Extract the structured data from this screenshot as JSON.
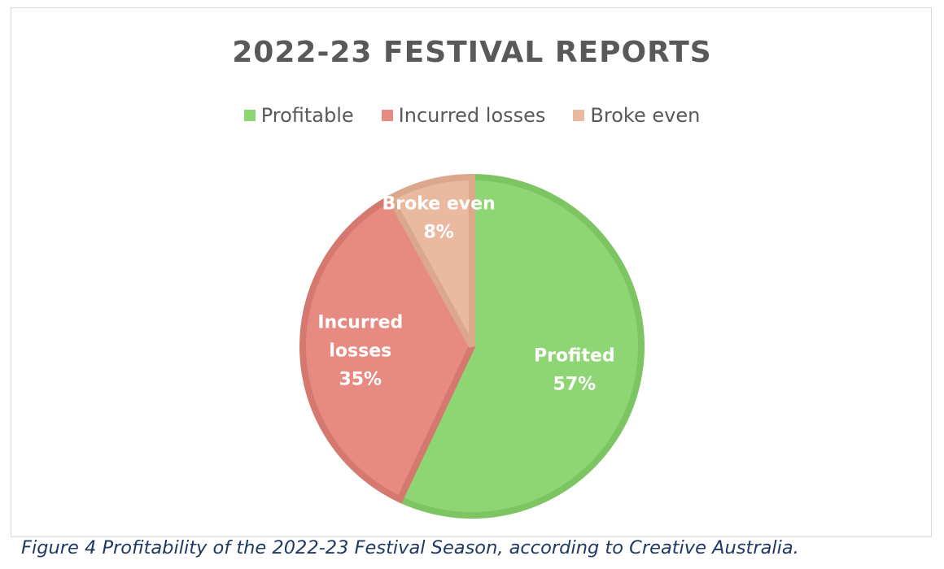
{
  "chart_data": {
    "type": "pie",
    "title": "2022-23 FESTIVAL REPORTS",
    "legend": {
      "position": "top",
      "entries": [
        "Profitable",
        "Incurred losses",
        "Broke even"
      ]
    },
    "slices": [
      {
        "legend": "Profitable",
        "label_lines": [
          "Profited"
        ],
        "pct_label": "57%",
        "value": 57,
        "color": "#8ed673",
        "stroke": "#7dc462"
      },
      {
        "legend": "Incurred losses",
        "label_lines": [
          "Incurred",
          "losses"
        ],
        "pct_label": "35%",
        "value": 35,
        "color": "#e68a82",
        "stroke": "#d57870"
      },
      {
        "legend": "Broke even",
        "label_lines": [
          "Broke even"
        ],
        "pct_label": "8%",
        "value": 8,
        "color": "#e9b9a0",
        "stroke": "#dba88e"
      }
    ]
  },
  "caption": "Figure 4 Profitability of the 2022-23 Festival Season, according to Creative Australia."
}
